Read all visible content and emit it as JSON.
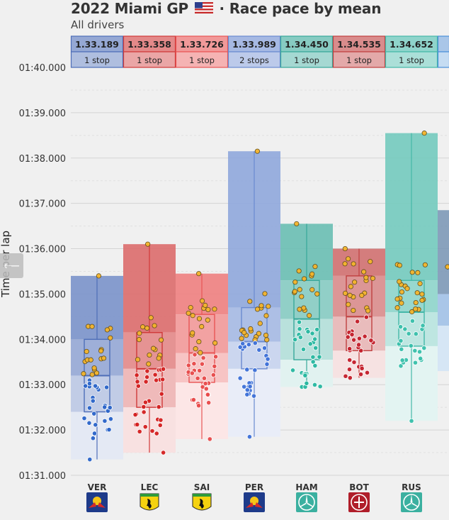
{
  "title": "2022 Miami GP",
  "title_suffix": "· Race pace by mean",
  "subtitle": "All drivers",
  "nav_glyph": "⟵",
  "chart_data": {
    "type": "box-strip",
    "ylabel": "Time per lap",
    "ylim": [
      91.0,
      100.0
    ],
    "y_ticks": [
      "01:31.000",
      "01:32.000",
      "01:33.000",
      "01:34.000",
      "01:35.000",
      "01:36.000",
      "01:37.000",
      "01:38.000",
      "01:39.000",
      "01:40.000"
    ],
    "y_tick_values": [
      91,
      92,
      93,
      94,
      95,
      96,
      97,
      98,
      99,
      100
    ],
    "drivers": [
      {
        "code": "VER",
        "mean": "1.33.189",
        "stops": "1 stop",
        "team": "Red Bull",
        "color": "#4e6eb8",
        "point": "#2a64c9",
        "logo": "redbull-icon",
        "min": 91.35,
        "q1": 92.4,
        "median": 93.2,
        "q3": 94.0,
        "max": 95.4
      },
      {
        "code": "LEC",
        "mean": "1.33.358",
        "stops": "1 stop",
        "team": "Ferrari",
        "color": "#d03a3a",
        "point": "#d42020",
        "logo": "ferrari-icon",
        "min": 91.5,
        "q1": 92.5,
        "median": 93.35,
        "q3": 94.15,
        "max": 96.1
      },
      {
        "code": "SAI",
        "mean": "1.33.726",
        "stops": "1 stop",
        "team": "Ferrari",
        "color": "#e85555",
        "point": "#e84a4a",
        "logo": "ferrari-icon",
        "min": 91.8,
        "q1": 93.05,
        "median": 93.7,
        "q3": 94.55,
        "max": 95.45
      },
      {
        "code": "PER",
        "mean": "1.33.989",
        "stops": "2 stops",
        "team": "Red Bull",
        "color": "#6a8ad0",
        "point": "#3d70d8",
        "logo": "redbull-icon",
        "min": 91.85,
        "q1": 93.35,
        "median": 93.95,
        "q3": 94.7,
        "max": 98.15
      },
      {
        "code": "HAM",
        "mean": "1.34.450",
        "stops": "1 stop",
        "team": "Mercedes",
        "color": "#37a89a",
        "point": "#27b8a0",
        "logo": "mercedes-icon",
        "min": 92.95,
        "q1": 93.55,
        "median": 94.45,
        "q3": 95.3,
        "max": 96.55
      },
      {
        "code": "BOT",
        "mean": "1.34.535",
        "stops": "1 stop",
        "team": "Alfa Romeo",
        "color": "#c04040",
        "point": "#c41e2a",
        "logo": "alfaromeo-icon",
        "min": 93.15,
        "q1": 93.75,
        "median": 94.5,
        "q3": 95.4,
        "max": 96.0
      },
      {
        "code": "RUS",
        "mean": "1.34.652",
        "stops": "1 stop",
        "team": "Mercedes",
        "color": "#44b8a8",
        "point": "#39c0ab",
        "logo": "mercedes-icon",
        "min": 92.2,
        "q1": 93.85,
        "median": 94.6,
        "q3": 95.3,
        "max": 98.55
      }
    ]
  }
}
